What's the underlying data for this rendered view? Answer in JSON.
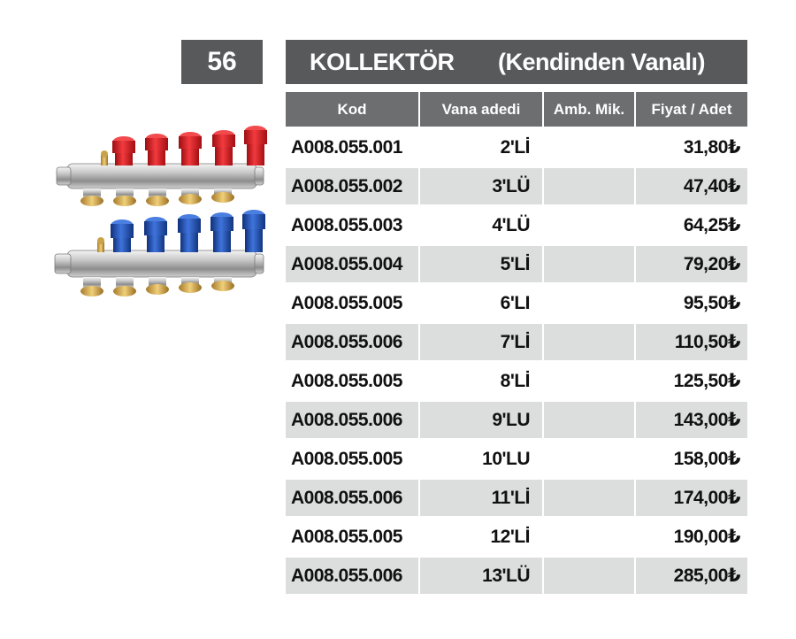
{
  "page_number": "56",
  "title": {
    "main": "KOLLEKTÖR",
    "sub": "(Kendinden Vanalı)"
  },
  "table": {
    "headers": [
      "Kod",
      "Vana adedi",
      "Amb. Mik.",
      "Fiyat / Adet"
    ],
    "rows": [
      {
        "kod": "A008.055.001",
        "vana": "2'Lİ",
        "amb": "",
        "fiyat": "31,80₺"
      },
      {
        "kod": "A008.055.002",
        "vana": "3'LÜ",
        "amb": "",
        "fiyat": "47,40₺"
      },
      {
        "kod": "A008.055.003",
        "vana": "4'LÜ",
        "amb": "",
        "fiyat": "64,25₺"
      },
      {
        "kod": "A008.055.004",
        "vana": "5'Lİ",
        "amb": "",
        "fiyat": "79,20₺"
      },
      {
        "kod": "A008.055.005",
        "vana": "6'LI",
        "amb": "",
        "fiyat": "95,50₺"
      },
      {
        "kod": "A008.055.006",
        "vana": "7'Lİ",
        "amb": "",
        "fiyat": "110,50₺"
      },
      {
        "kod": "A008.055.005",
        "vana": "8'Lİ",
        "amb": "",
        "fiyat": "125,50₺"
      },
      {
        "kod": "A008.055.006",
        "vana": "9'LU",
        "amb": "",
        "fiyat": "143,00₺"
      },
      {
        "kod": "A008.055.005",
        "vana": "10'LU",
        "amb": "",
        "fiyat": "158,00₺"
      },
      {
        "kod": "A008.055.006",
        "vana": "11'Lİ",
        "amb": "",
        "fiyat": "174,00₺"
      },
      {
        "kod": "A008.055.005",
        "vana": "12'Lİ",
        "amb": "",
        "fiyat": "190,00₺"
      },
      {
        "kod": "A008.055.006",
        "vana": "13'LÜ",
        "amb": "",
        "fiyat": "285,00₺"
      }
    ]
  },
  "colors": {
    "header_dark": "#58595b",
    "header_col": "#6d6e70",
    "row_stripe": "#dcdddd",
    "valve_red": "#e0151b",
    "valve_blue": "#1a4fb8"
  }
}
